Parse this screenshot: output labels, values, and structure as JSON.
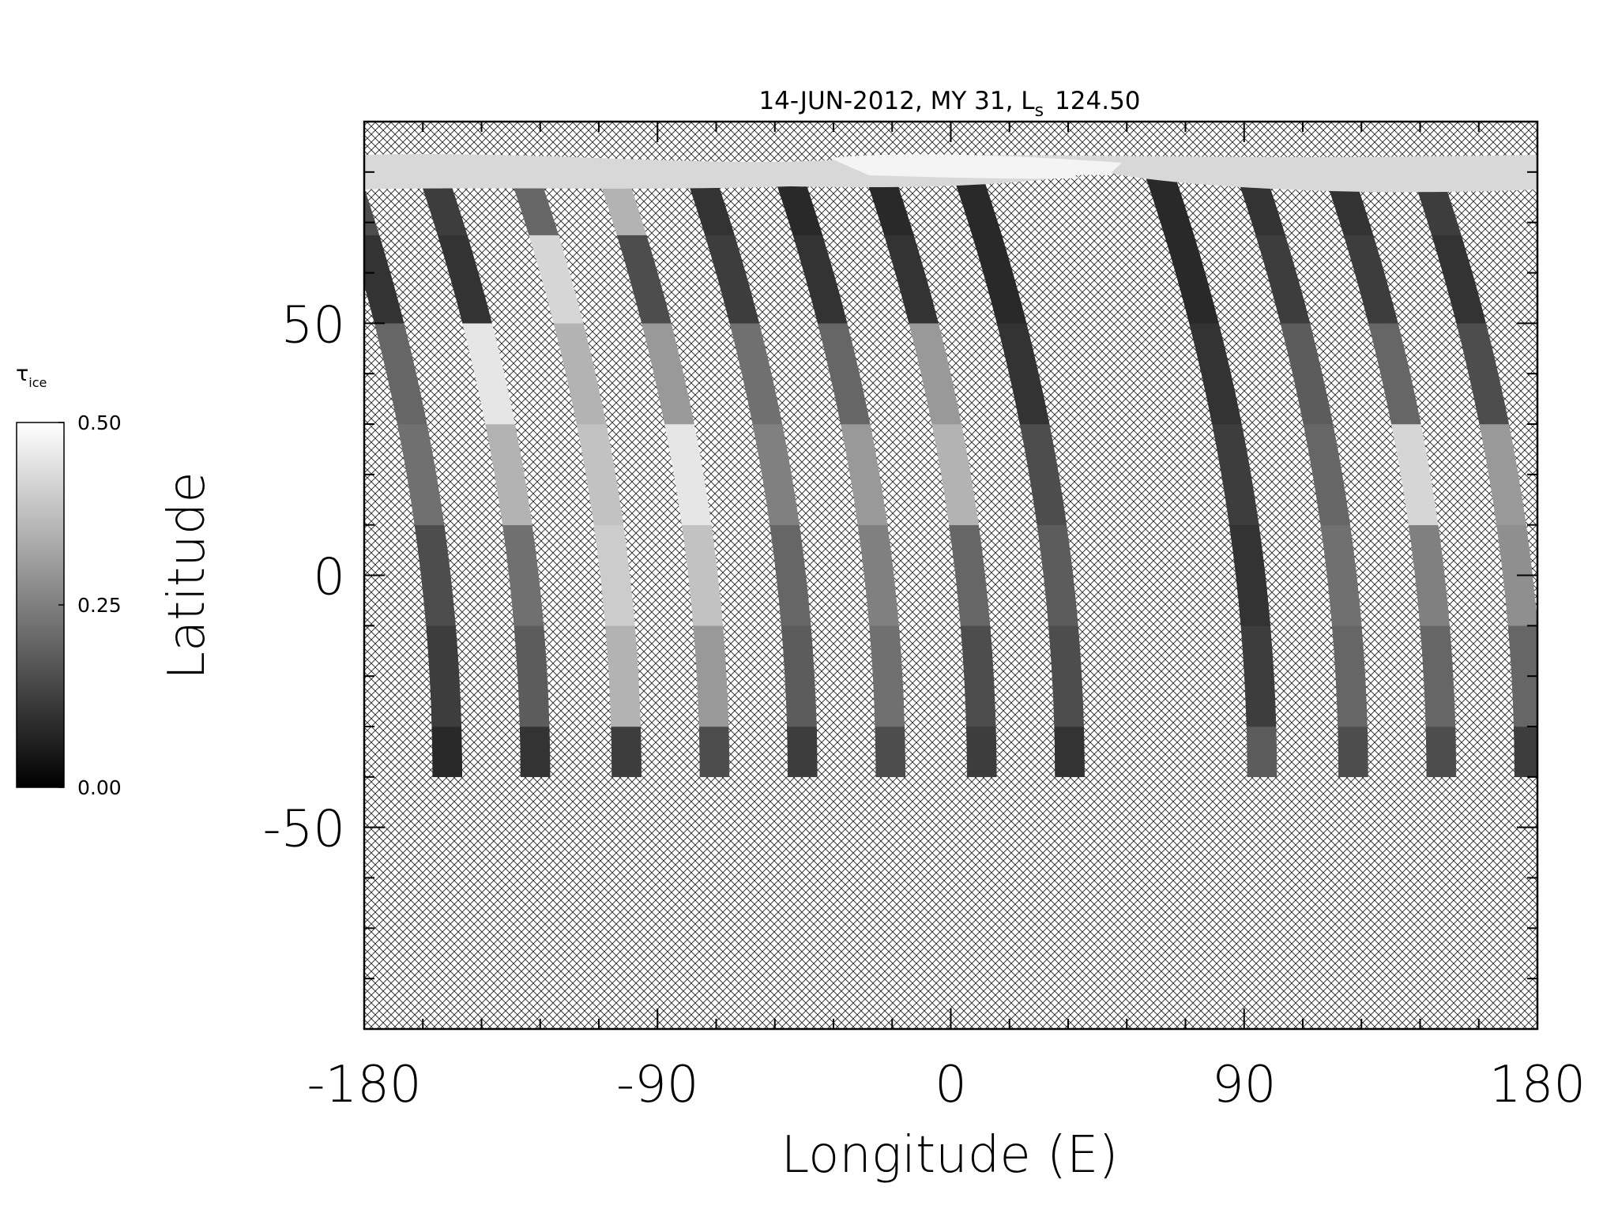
{
  "chart_data": {
    "type": "map",
    "title": {
      "main": "14-JUN-2012, MY 31,  L",
      "sub": "s",
      "tail": "124.50"
    },
    "xlabel": "Longitude (E)",
    "ylabel": "Latitude",
    "xlim": [
      -180,
      180
    ],
    "ylim": [
      -90,
      90
    ],
    "xticks": [
      -180,
      -90,
      0,
      90,
      180
    ],
    "yticks": [
      -50,
      0,
      50
    ],
    "xminorticks": [
      -162,
      -144,
      -126,
      -108,
      -72,
      -54,
      -36,
      -18,
      18,
      36,
      54,
      72,
      108,
      126,
      144,
      162
    ],
    "yminorticks": [
      -80,
      -70,
      -60,
      -40,
      -30,
      -20,
      -10,
      10,
      20,
      30,
      40,
      60,
      70,
      80
    ],
    "colorbar": {
      "label": {
        "symbol": "τ",
        "sub": "ice"
      },
      "range": [
        0,
        0.5
      ],
      "colormap": [
        "#000000",
        "#ffffff"
      ],
      "ticks": [
        {
          "value": 0,
          "label": "0.00"
        },
        {
          "value": 0.25,
          "label": "0.25"
        },
        {
          "value": 0.5,
          "label": "0.50"
        }
      ]
    },
    "swaths": {
      "lat": [
        -40,
        -20,
        0,
        20,
        40,
        60,
        75
      ],
      "series": [
        {
          "lon": -159,
          "values": [
            0.08,
            0.12,
            0.15,
            0.22,
            0.2,
            0.1,
            0.15
          ]
        },
        {
          "lon": -132,
          "values": [
            0.1,
            0.18,
            0.22,
            0.35,
            0.45,
            0.1,
            0.12
          ]
        },
        {
          "lon": -104,
          "values": [
            0.12,
            0.35,
            0.4,
            0.38,
            0.35,
            0.42,
            0.2
          ]
        },
        {
          "lon": -77,
          "values": [
            0.15,
            0.3,
            0.38,
            0.45,
            0.3,
            0.15,
            0.35
          ]
        },
        {
          "lon": -50,
          "values": [
            0.12,
            0.18,
            0.2,
            0.25,
            0.22,
            0.12,
            0.1
          ]
        },
        {
          "lon": -23,
          "values": [
            0.15,
            0.22,
            0.25,
            0.3,
            0.2,
            0.1,
            0.08
          ]
        },
        {
          "lon": 5,
          "values": [
            0.12,
            0.15,
            0.2,
            0.35,
            0.3,
            0.1,
            0.08
          ]
        },
        {
          "lon": 32,
          "values": [
            0.1,
            0.15,
            0.18,
            0.15,
            0.1,
            0.08,
            0.08
          ]
        },
        {
          "lon": 91,
          "values": [
            0.18,
            0.12,
            0.1,
            0.12,
            0.1,
            0.08,
            0.08
          ]
        },
        {
          "lon": 119,
          "values": [
            0.15,
            0.2,
            0.22,
            0.2,
            0.18,
            0.12,
            0.1
          ]
        },
        {
          "lon": 146,
          "values": [
            0.15,
            0.2,
            0.25,
            0.42,
            0.2,
            0.12,
            0.1
          ]
        },
        {
          "lon": 173,
          "values": [
            0.12,
            0.2,
            0.28,
            0.3,
            0.15,
            0.1,
            0.12
          ]
        }
      ]
    }
  }
}
